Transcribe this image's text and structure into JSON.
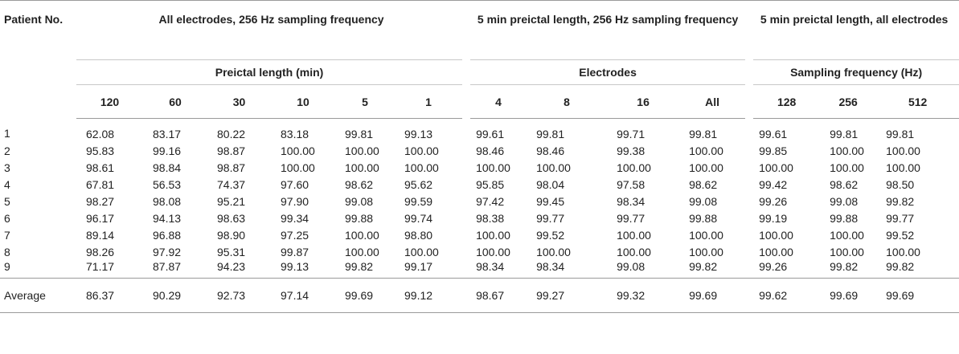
{
  "table": {
    "header": {
      "patient_col": "Patient No.",
      "group_all_electrodes": "All electrodes, 256 Hz sampling frequency",
      "group_5min_256": "5 min preictal length, 256 Hz sampling frequency",
      "group_5min_all": "5 min preictal length, all electrodes",
      "sub_preictal_length": "Preictal length (min)",
      "sub_electrodes": "Electrodes",
      "sub_sampling_frequency": "Sampling frequency (Hz)",
      "columns": [
        "120",
        "60",
        "30",
        "10",
        "5",
        "1",
        "4",
        "8",
        "16",
        "All",
        "128",
        "256",
        "512"
      ]
    },
    "rows": [
      {
        "label": "1",
        "values": [
          "62.08",
          "83.17",
          "80.22",
          "83.18",
          "99.81",
          "99.13",
          "99.61",
          "99.81",
          "99.71",
          "99.81",
          "99.61",
          "99.81",
          "99.81"
        ]
      },
      {
        "label": "2",
        "values": [
          "95.83",
          "99.16",
          "98.87",
          "100.00",
          "100.00",
          "100.00",
          "98.46",
          "98.46",
          "99.38",
          "100.00",
          "99.85",
          "100.00",
          "100.00"
        ]
      },
      {
        "label": "3",
        "values": [
          "98.61",
          "98.84",
          "98.87",
          "100.00",
          "100.00",
          "100.00",
          "100.00",
          "100.00",
          "100.00",
          "100.00",
          "100.00",
          "100.00",
          "100.00"
        ]
      },
      {
        "label": "4",
        "values": [
          "67.81",
          "56.53",
          "74.37",
          "97.60",
          "98.62",
          "95.62",
          "95.85",
          "98.04",
          "97.58",
          "98.62",
          "99.42",
          "98.62",
          "98.50"
        ]
      },
      {
        "label": "5",
        "values": [
          "98.27",
          "98.08",
          "95.21",
          "97.90",
          "99.08",
          "99.59",
          "97.42",
          "99.45",
          "98.34",
          "99.08",
          "99.26",
          "99.08",
          "99.82"
        ]
      },
      {
        "label": "6",
        "values": [
          "96.17",
          "94.13",
          "98.63",
          "99.34",
          "99.88",
          "99.74",
          "98.38",
          "99.77",
          "99.77",
          "99.88",
          "99.19",
          "99.88",
          "99.77"
        ]
      },
      {
        "label": "7",
        "values": [
          "89.14",
          "96.88",
          "98.90",
          "97.25",
          "100.00",
          "98.80",
          "100.00",
          "99.52",
          "100.00",
          "100.00",
          "100.00",
          "100.00",
          "99.52"
        ]
      },
      {
        "label": "8",
        "values": [
          "98.26",
          "97.92",
          "95.31",
          "99.87",
          "100.00",
          "100.00",
          "100.00",
          "100.00",
          "100.00",
          "100.00",
          "100.00",
          "100.00",
          "100.00"
        ]
      },
      {
        "label": "9",
        "values": [
          "71.17",
          "87.87",
          "94.23",
          "99.13",
          "99.82",
          "99.17",
          "98.34",
          "98.34",
          "99.08",
          "99.82",
          "99.26",
          "99.82",
          "99.82"
        ]
      }
    ],
    "average": {
      "label": "Average",
      "values": [
        "86.37",
        "90.29",
        "92.73",
        "97.14",
        "99.69",
        "99.12",
        "98.67",
        "99.27",
        "99.32",
        "99.69",
        "99.62",
        "99.69",
        "99.69"
      ]
    }
  }
}
